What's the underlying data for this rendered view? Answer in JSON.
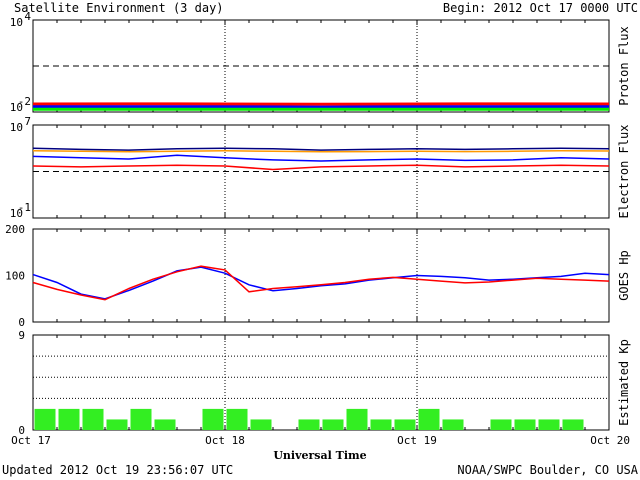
{
  "header": {
    "title": "Satellite Environment (3 day)",
    "begin": "Begin:  2012 Oct 17 0000 UTC"
  },
  "footer": {
    "updated": "Updated 2012 Oct 19 23:56:07 UTC",
    "credit": "NOAA/SWPC Boulder, CO USA"
  },
  "colors": {
    "red": "#ff0000",
    "blue": "#0000ff",
    "green": "#00ee00",
    "orange": "#ff9900",
    "navy": "#000080"
  },
  "chart_data": [
    {
      "type": "line",
      "panel": "proton",
      "ylabel": "Proton Flux",
      "yscale": "log",
      "ylim": [
        0.01,
        10000
      ],
      "ytick_labels": [
        {
          "base": "10",
          "exp": "4"
        },
        {
          "base": "10",
          "exp": "-2"
        }
      ],
      "threshold": 10,
      "series": [
        {
          "color": "red",
          "values": [
            0.033,
            0.034,
            0.032,
            0.034,
            0.033
          ]
        },
        {
          "color": "blue",
          "values": [
            0.022,
            0.022,
            0.021,
            0.022,
            0.022
          ]
        },
        {
          "color": "green",
          "values": [
            0.015,
            0.015,
            0.015,
            0.015,
            0.015
          ]
        }
      ]
    },
    {
      "type": "line",
      "panel": "electron",
      "ylabel": "Electron Flux",
      "yscale": "log",
      "ylim": [
        0.1,
        10000000
      ],
      "ytick_labels": [
        {
          "base": "10",
          "exp": "7"
        },
        {
          "base": "10",
          "exp": "-1"
        }
      ],
      "threshold": 1000,
      "series": [
        {
          "color": "navy",
          "values": [
            100000,
            80000,
            70000,
            90000,
            100000,
            90000,
            70000,
            80000,
            90000,
            80000,
            90000,
            100000,
            90000
          ]
        },
        {
          "color": "orange",
          "values": [
            60000,
            55000,
            50000,
            55000,
            60000,
            55000,
            50000,
            52000,
            55000,
            52000,
            55000,
            60000,
            58000
          ]
        },
        {
          "color": "blue",
          "values": [
            20000,
            15000,
            12000,
            25000,
            15000,
            10000,
            8000,
            10000,
            12000,
            9000,
            10000,
            15000,
            12000
          ]
        },
        {
          "color": "red",
          "values": [
            3000,
            2500,
            3000,
            3500,
            3000,
            1500,
            2500,
            3000,
            3500,
            2500,
            3000,
            3500,
            3000
          ]
        }
      ]
    },
    {
      "type": "line",
      "panel": "hp",
      "ylabel": "GOES Hp",
      "ylim": [
        0,
        200
      ],
      "y_ticks": [
        "200",
        "100",
        "0"
      ],
      "series": [
        {
          "color": "blue",
          "values": [
            102,
            85,
            60,
            50,
            68,
            88,
            110,
            118,
            105,
            80,
            67,
            72,
            78,
            82,
            90,
            95,
            100,
            98,
            95,
            90,
            92,
            95,
            98,
            105,
            102
          ]
        },
        {
          "color": "red",
          "values": [
            85,
            70,
            58,
            48,
            72,
            92,
            108,
            120,
            112,
            65,
            72,
            76,
            80,
            85,
            92,
            96,
            92,
            88,
            84,
            86,
            90,
            94,
            92,
            90,
            88
          ]
        }
      ]
    },
    {
      "type": "bar",
      "panel": "kp",
      "ylabel": "Estimated Kp",
      "ylim": [
        0,
        9
      ],
      "y_ticks": [
        "9",
        "0"
      ],
      "reference_lines": [
        3,
        5,
        7
      ],
      "values": [
        2,
        2,
        2,
        1,
        2,
        1,
        0,
        2,
        2,
        1,
        0,
        1,
        1,
        2,
        1,
        1,
        2,
        1,
        0,
        1,
        1,
        1,
        1,
        0
      ],
      "bar_color": "#33ee22"
    }
  ],
  "x_axis": {
    "labels": [
      "Oct 17",
      "Oct 18",
      "Oct 19",
      "Oct 20"
    ],
    "title": "Universal Time"
  }
}
